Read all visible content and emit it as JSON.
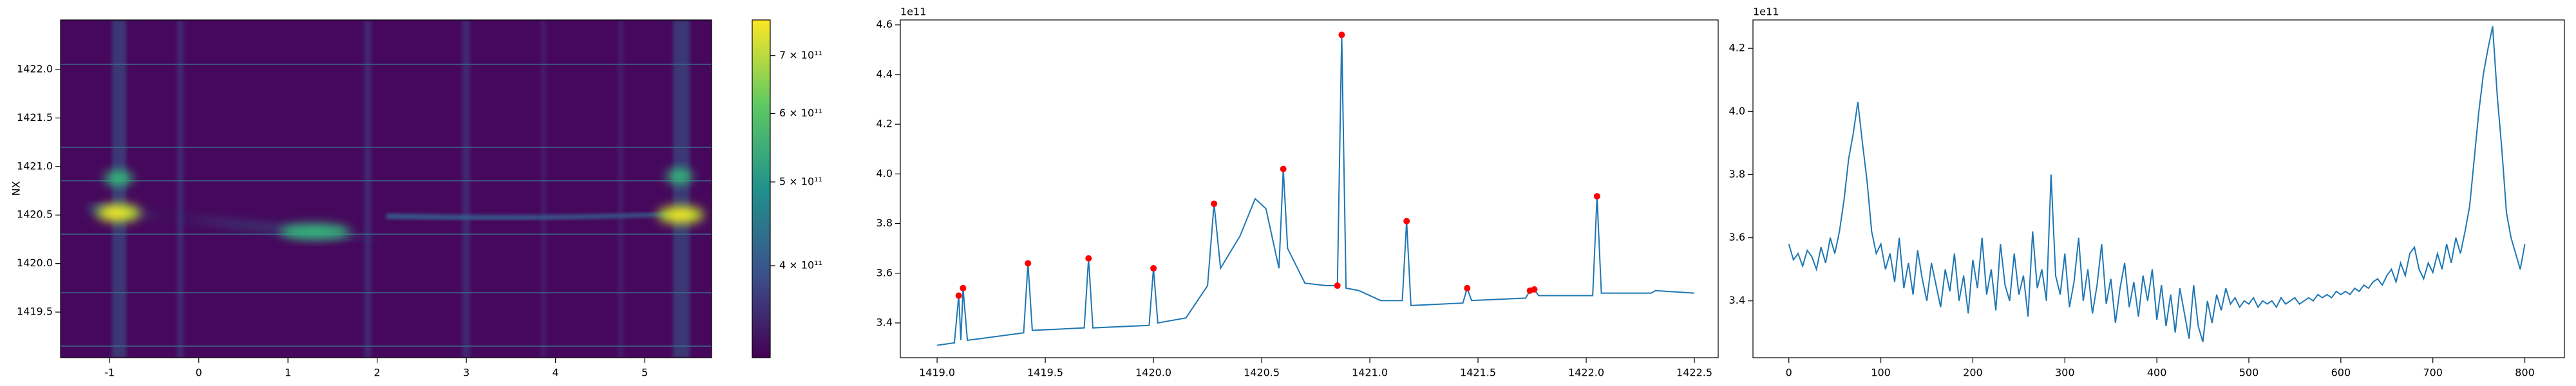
{
  "chart_data": [
    {
      "type": "heatmap",
      "ylabel": "NX",
      "xlim": [
        -1.55,
        5.75
      ],
      "ylim": [
        1419.03,
        1422.51
      ],
      "xticks": [
        -1,
        0,
        1,
        2,
        3,
        4,
        5
      ],
      "yticks": [
        1419.5,
        {
          "value": 1420,
          "label": "1420.0"
        },
        1420.5,
        {
          "value": 1421,
          "label": "1421.0"
        },
        1421.5,
        {
          "value": 1422,
          "label": "1422.0"
        }
      ],
      "colorbar": {
        "scale": "log",
        "colormap": "viridis",
        "lim": [
          313000000000,
          770000000000
        ],
        "ticks": [
          {
            "value": 400000000000,
            "label": "4 × 10¹¹"
          },
          {
            "value": 500000000000,
            "label": "5 × 10¹¹"
          },
          {
            "value": 600000000000,
            "label": "6 × 10¹¹"
          },
          {
            "value": 700000000000,
            "label": "7 × 10¹¹"
          }
        ]
      }
    },
    {
      "type": "line",
      "offset_text": "1e11",
      "xlim": [
        1418.83,
        1422.61
      ],
      "ylim": [
        3.26,
        4.62
      ],
      "xticks": [
        {
          "value": 1419,
          "label": "1419.0"
        },
        1419.5,
        {
          "value": 1420,
          "label": "1420.0"
        },
        1420.5,
        {
          "value": 1421,
          "label": "1421.0"
        },
        1421.5,
        {
          "value": 1422,
          "label": "1422.0"
        },
        1422.5
      ],
      "yticks": [
        3.4,
        3.6,
        3.8,
        {
          "value": 4,
          "label": "4.0"
        },
        4.2,
        4.4,
        4.6
      ],
      "x": [
        1419.0,
        1419.08,
        1419.1,
        1419.11,
        1419.12,
        1419.14,
        1419.4,
        1419.42,
        1419.44,
        1419.68,
        1419.7,
        1419.72,
        1419.98,
        1420.0,
        1420.02,
        1420.15,
        1420.25,
        1420.28,
        1420.31,
        1420.4,
        1420.47,
        1420.52,
        1420.58,
        1420.6,
        1420.62,
        1420.7,
        1420.8,
        1420.85,
        1420.87,
        1420.89,
        1420.95,
        1421.05,
        1421.15,
        1421.17,
        1421.19,
        1421.43,
        1421.45,
        1421.47,
        1421.72,
        1421.74,
        1421.76,
        1421.78,
        1422.03,
        1422.05,
        1422.07,
        1422.3,
        1422.32,
        1422.5
      ],
      "series": [
        {
          "color": "#1f77b4",
          "values": [
            3.31,
            3.32,
            3.51,
            3.33,
            3.54,
            3.33,
            3.36,
            3.64,
            3.37,
            3.38,
            3.66,
            3.38,
            3.39,
            3.62,
            3.4,
            3.42,
            3.55,
            3.88,
            3.62,
            3.75,
            3.9,
            3.86,
            3.62,
            4.02,
            3.7,
            3.56,
            3.55,
            3.55,
            4.56,
            3.54,
            3.53,
            3.49,
            3.49,
            3.81,
            3.47,
            3.48,
            3.54,
            3.49,
            3.5,
            3.53,
            3.535,
            3.51,
            3.51,
            3.91,
            3.52,
            3.52,
            3.53,
            3.52
          ]
        },
        {
          "color": "#ff0000",
          "marker": "o",
          "x": [
            1419.1,
            1419.12,
            1419.42,
            1419.7,
            1420.0,
            1420.28,
            1420.6,
            1420.85,
            1420.87,
            1421.17,
            1421.45,
            1421.74,
            1421.76,
            1422.05
          ],
          "values": [
            3.51,
            3.54,
            3.64,
            3.66,
            3.62,
            3.88,
            4.02,
            3.55,
            4.56,
            3.81,
            3.54,
            3.53,
            3.535,
            3.91
          ]
        }
      ]
    },
    {
      "type": "line",
      "offset_text": "1e11",
      "xlim": [
        -39,
        843
      ],
      "ylim": [
        3.22,
        4.29
      ],
      "xticks": [
        0,
        100,
        200,
        300,
        400,
        500,
        600,
        700,
        800
      ],
      "yticks": [
        3.4,
        3.6,
        3.8,
        {
          "value": 4,
          "label": "4.0"
        },
        4.2
      ],
      "x": [
        0,
        5,
        10,
        15,
        20,
        25,
        30,
        35,
        40,
        45,
        50,
        55,
        60,
        65,
        70,
        75,
        80,
        85,
        90,
        95,
        100,
        105,
        110,
        115,
        120,
        125,
        130,
        135,
        140,
        145,
        150,
        155,
        160,
        165,
        170,
        175,
        180,
        185,
        190,
        195,
        200,
        205,
        210,
        215,
        220,
        225,
        230,
        235,
        240,
        245,
        250,
        255,
        260,
        265,
        270,
        275,
        280,
        285,
        290,
        295,
        300,
        305,
        310,
        315,
        320,
        325,
        330,
        335,
        340,
        345,
        350,
        355,
        360,
        365,
        370,
        375,
        380,
        385,
        390,
        395,
        400,
        405,
        410,
        415,
        420,
        425,
        430,
        435,
        440,
        445,
        450,
        455,
        460,
        465,
        470,
        475,
        480,
        485,
        490,
        495,
        500,
        505,
        510,
        515,
        520,
        525,
        530,
        535,
        540,
        545,
        550,
        555,
        560,
        565,
        570,
        575,
        580,
        585,
        590,
        595,
        600,
        605,
        610,
        615,
        620,
        625,
        630,
        635,
        640,
        645,
        650,
        655,
        660,
        665,
        670,
        675,
        680,
        685,
        690,
        695,
        700,
        705,
        710,
        715,
        720,
        725,
        730,
        735,
        740,
        745,
        750,
        755,
        760,
        765,
        770,
        775,
        780,
        785,
        790,
        795,
        800
      ],
      "series": [
        {
          "color": "#1f77b4",
          "values": [
            3.58,
            3.53,
            3.55,
            3.51,
            3.56,
            3.54,
            3.5,
            3.57,
            3.52,
            3.6,
            3.55,
            3.62,
            3.72,
            3.85,
            3.93,
            4.03,
            3.9,
            3.78,
            3.62,
            3.55,
            3.58,
            3.5,
            3.55,
            3.46,
            3.6,
            3.44,
            3.52,
            3.42,
            3.56,
            3.47,
            3.4,
            3.52,
            3.45,
            3.38,
            3.5,
            3.43,
            3.55,
            3.4,
            3.48,
            3.36,
            3.53,
            3.44,
            3.6,
            3.42,
            3.5,
            3.37,
            3.58,
            3.45,
            3.4,
            3.55,
            3.42,
            3.48,
            3.35,
            3.62,
            3.44,
            3.5,
            3.4,
            3.8,
            3.48,
            3.42,
            3.55,
            3.38,
            3.46,
            3.6,
            3.4,
            3.5,
            3.36,
            3.45,
            3.58,
            3.39,
            3.47,
            3.33,
            3.44,
            3.52,
            3.38,
            3.46,
            3.35,
            3.48,
            3.4,
            3.5,
            3.34,
            3.45,
            3.32,
            3.42,
            3.3,
            3.44,
            3.36,
            3.28,
            3.45,
            3.32,
            3.27,
            3.4,
            3.33,
            3.42,
            3.37,
            3.44,
            3.39,
            3.41,
            3.38,
            3.4,
            3.39,
            3.41,
            3.38,
            3.4,
            3.39,
            3.4,
            3.38,
            3.41,
            3.39,
            3.4,
            3.41,
            3.39,
            3.4,
            3.41,
            3.4,
            3.42,
            3.41,
            3.42,
            3.41,
            3.43,
            3.42,
            3.43,
            3.42,
            3.44,
            3.43,
            3.45,
            3.44,
            3.46,
            3.47,
            3.45,
            3.48,
            3.5,
            3.46,
            3.52,
            3.48,
            3.55,
            3.57,
            3.5,
            3.47,
            3.52,
            3.49,
            3.55,
            3.5,
            3.58,
            3.52,
            3.6,
            3.55,
            3.62,
            3.7,
            3.85,
            4.0,
            4.12,
            4.2,
            4.27,
            4.05,
            3.88,
            3.68,
            3.6,
            3.55,
            3.5,
            3.58
          ]
        }
      ]
    }
  ]
}
